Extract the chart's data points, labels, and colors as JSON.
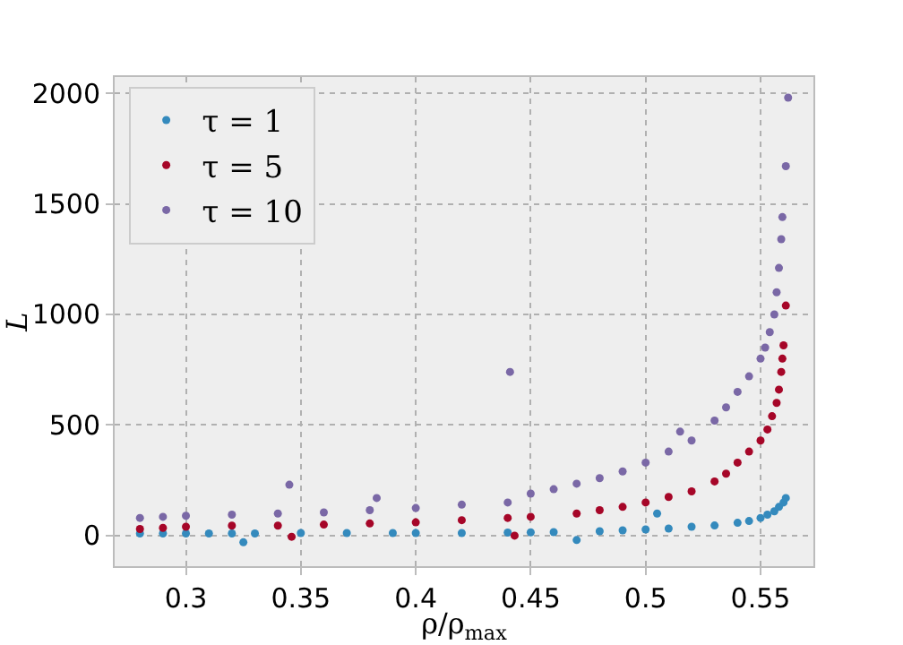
{
  "chart_data": {
    "type": "scatter",
    "xlabel": "ρ/ρ$_{max}$",
    "ylabel": "L",
    "xlim": [
      0.269,
      0.573
    ],
    "ylim": [
      -138,
      2073
    ],
    "xticks": [
      0.3,
      0.35,
      0.4,
      0.45,
      0.5,
      0.55
    ],
    "yticks": [
      0,
      500,
      1000,
      1500,
      2000
    ],
    "grid": true,
    "legend": "top left",
    "marker": "circle",
    "series": [
      {
        "name": "τ = 1",
        "color": "#348abd",
        "x": [
          0.28,
          0.29,
          0.3,
          0.31,
          0.32,
          0.325,
          0.33,
          0.35,
          0.37,
          0.39,
          0.4,
          0.42,
          0.44,
          0.45,
          0.46,
          0.47,
          0.48,
          0.49,
          0.5,
          0.505,
          0.51,
          0.52,
          0.53,
          0.54,
          0.545,
          0.55,
          0.553,
          0.556,
          0.558,
          0.56,
          0.561
        ],
        "values": [
          10,
          10,
          10,
          10,
          10,
          -30,
          10,
          12,
          12,
          12,
          12,
          12,
          14,
          15,
          16,
          -20,
          20,
          24,
          28,
          100,
          32,
          40,
          46,
          58,
          66,
          80,
          95,
          110,
          130,
          150,
          170
        ]
      },
      {
        "name": "τ = 5",
        "color": "#a60628",
        "x": [
          0.28,
          0.29,
          0.3,
          0.32,
          0.34,
          0.346,
          0.36,
          0.38,
          0.4,
          0.42,
          0.44,
          0.443,
          0.45,
          0.47,
          0.48,
          0.49,
          0.5,
          0.51,
          0.52,
          0.53,
          0.535,
          0.54,
          0.545,
          0.55,
          0.553,
          0.555,
          0.557,
          0.558,
          0.559,
          0.5595,
          0.56,
          0.561
        ],
        "values": [
          30,
          35,
          40,
          45,
          45,
          -5,
          50,
          55,
          60,
          70,
          80,
          0,
          85,
          100,
          115,
          130,
          150,
          175,
          200,
          245,
          280,
          330,
          380,
          430,
          480,
          540,
          600,
          660,
          740,
          800,
          860,
          1040
        ]
      },
      {
        "name": "τ = 10",
        "color": "#7a68a6",
        "x": [
          0.28,
          0.29,
          0.3,
          0.32,
          0.34,
          0.345,
          0.36,
          0.38,
          0.383,
          0.4,
          0.42,
          0.44,
          0.441,
          0.45,
          0.46,
          0.47,
          0.48,
          0.49,
          0.5,
          0.51,
          0.515,
          0.52,
          0.53,
          0.535,
          0.54,
          0.545,
          0.55,
          0.552,
          0.554,
          0.556,
          0.557,
          0.558,
          0.559,
          0.5595,
          0.561,
          0.562
        ],
        "values": [
          80,
          85,
          90,
          95,
          100,
          230,
          105,
          115,
          170,
          125,
          140,
          150,
          740,
          190,
          210,
          235,
          260,
          290,
          330,
          380,
          470,
          430,
          520,
          580,
          650,
          720,
          800,
          850,
          920,
          1000,
          1100,
          1210,
          1340,
          1440,
          1670,
          1980
        ]
      }
    ]
  }
}
